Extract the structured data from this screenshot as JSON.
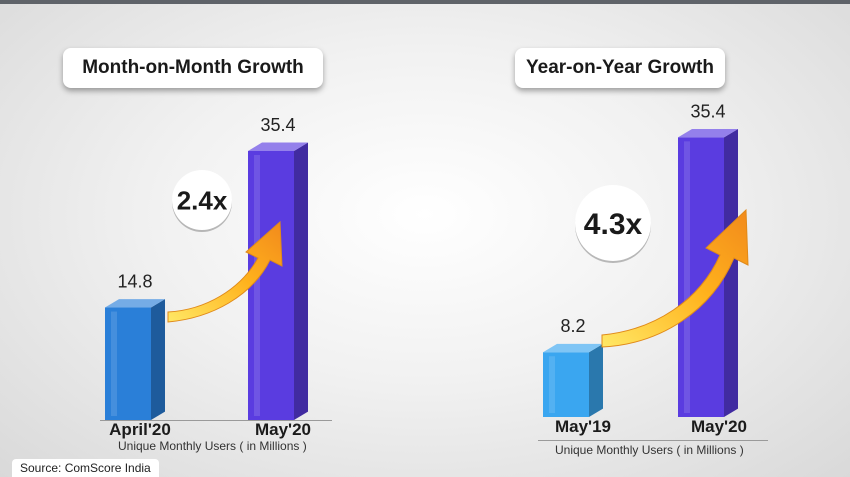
{
  "chart_data": [
    {
      "type": "bar",
      "title": "Month-on-Month Growth",
      "categories": [
        "April'20",
        "May'20"
      ],
      "values": [
        14.8,
        35.4
      ],
      "value_labels": [
        "14.8",
        "35.4"
      ],
      "multiplier": "2.4x",
      "xlabel": "Unique Monthly Users ( in Millions )",
      "colors": [
        "#2a7fd8",
        "#5a3ce0"
      ]
    },
    {
      "type": "bar",
      "title": "Year-on-Year Growth",
      "categories": [
        "May'19",
        "May'20"
      ],
      "values": [
        8.2,
        35.4
      ],
      "value_labels": [
        "8.2",
        "35.4"
      ],
      "multiplier": "4.3x",
      "xlabel": "Unique Monthly Users ( in Millions )",
      "colors": [
        "#3aa6f0",
        "#5a3ce0"
      ]
    }
  ],
  "source": "Source: ComScore India",
  "colors": {
    "arrow_light": "#ffd23a",
    "arrow_dark": "#f08a1c",
    "accent_dark": "#5f6369"
  }
}
